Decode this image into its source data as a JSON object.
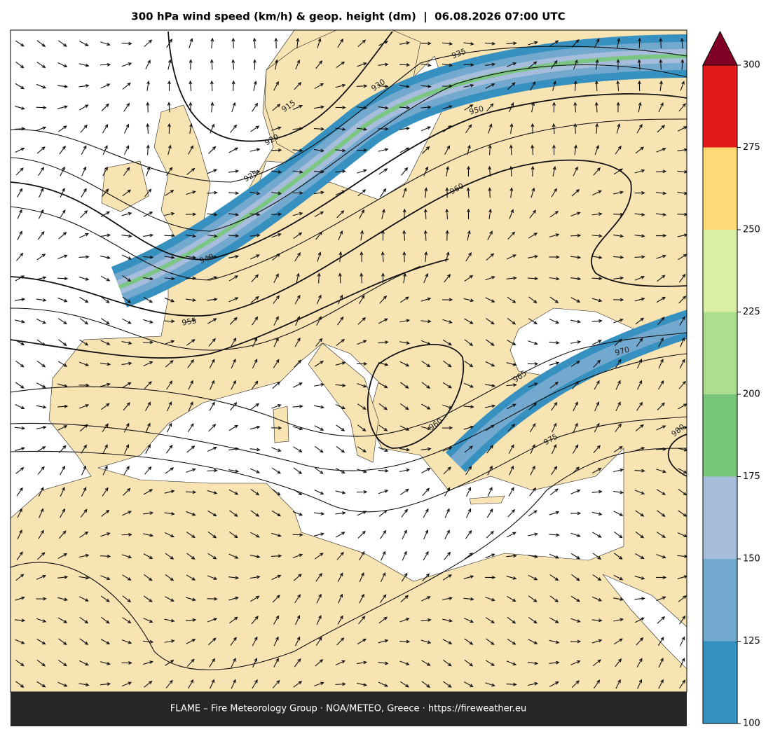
{
  "title": "300 hPa wind speed (km/h) & geop. height (dm)  |  06.08.2026 07:00 UTC",
  "footer": "FLAME – Fire Meteorology Group · NOA/METEO, Greece · https://fireweather.eu",
  "land_color": "#f8e3b3",
  "colorbar": {
    "range": [
      100,
      300
    ],
    "ticks": [
      100,
      125,
      150,
      175,
      200,
      225,
      250,
      275,
      300
    ],
    "colors": [
      "#3690c0",
      "#74a9cf",
      "#a6bddb",
      "#78c679",
      "#addd8e",
      "#d9f0a3",
      "#fed976",
      "#e31a1c"
    ],
    "extend_color": "#800026"
  },
  "contour_labels": [
    935,
    930,
    915,
    920,
    925,
    940,
    950,
    960,
    955,
    970,
    965,
    960,
    975,
    980
  ]
}
